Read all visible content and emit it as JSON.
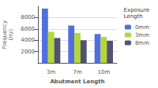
{
  "chart_data": {
    "type": "bar",
    "xlabel": "Abutment Length",
    "ylabel": "Frequency\n(Hz)",
    "legend_title": "Exposure\nLength",
    "categories": [
      "3m",
      "7m",
      "10m"
    ],
    "series": [
      {
        "name": "0mm",
        "values": [
          9600,
          6600,
          5100
        ]
      },
      {
        "name": "3mm",
        "values": [
          5500,
          5300,
          4600
        ]
      },
      {
        "name": "8mm",
        "values": [
          4400,
          4000,
          3900
        ]
      }
    ],
    "ylim": [
      0,
      10000
    ],
    "yticks": [
      2000,
      4000,
      6000,
      8000
    ],
    "grid": true,
    "legend": "upper right"
  }
}
